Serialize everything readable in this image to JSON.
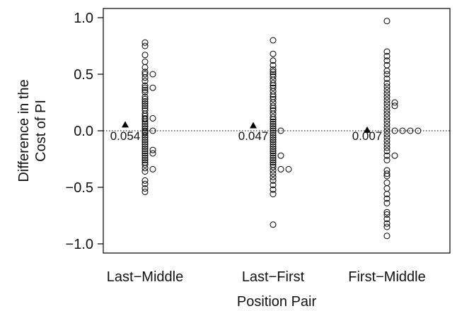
{
  "chart_data": {
    "type": "scatter",
    "title": "",
    "xlabel": "Position Pair",
    "ylabel_lines": [
      "Difference in the",
      "Cost of PI"
    ],
    "ylim": [
      -1.1,
      1.05
    ],
    "yticks": [
      1.0,
      0.5,
      0.0,
      -0.5,
      -1.0
    ],
    "ytick_labels": [
      "1.0",
      "0.5",
      "0.0",
      "−0.5",
      "−1.0"
    ],
    "categories": [
      "Last−Middle",
      "Last−First",
      "First−Middle"
    ],
    "reference_line": 0.0,
    "means": [
      {
        "category": "Last−Middle",
        "value": 0.054,
        "label": "0.054"
      },
      {
        "category": "Last−First",
        "value": 0.047,
        "label": "0.047"
      },
      {
        "category": "First−Middle",
        "value": 0.007,
        "label": "0.007"
      }
    ],
    "series": [
      {
        "category": "Last−Middle",
        "values": [
          0.78,
          0.75,
          0.67,
          0.61,
          0.56,
          0.52,
          0.5,
          0.47,
          0.44,
          0.4,
          0.38,
          0.36,
          0.34,
          0.3,
          0.28,
          0.26,
          0.24,
          0.22,
          0.2,
          0.18,
          0.15,
          0.13,
          0.11,
          0.1,
          0.08,
          0.06,
          0.04,
          0.02,
          0.0,
          -0.01,
          -0.02,
          -0.04,
          -0.06,
          -0.08,
          -0.1,
          -0.12,
          -0.14,
          -0.16,
          -0.18,
          -0.2,
          -0.22,
          -0.24,
          -0.26,
          -0.28,
          -0.3,
          -0.33,
          -0.36,
          -0.44,
          -0.47,
          -0.51,
          -0.54,
          0.5,
          0.38,
          0.11,
          0.0,
          -0.17,
          -0.2,
          -0.34
        ],
        "offsets": [
          0,
          0,
          0,
          0,
          0,
          0,
          0,
          0,
          0,
          0,
          0,
          0,
          0,
          0,
          0,
          0,
          0,
          0,
          0,
          0,
          0,
          0,
          0,
          0,
          0,
          0,
          0,
          0,
          0,
          0,
          0,
          0,
          0,
          0,
          0,
          0,
          0,
          0,
          0,
          0,
          0,
          0,
          0,
          0,
          0,
          0,
          0,
          0,
          0,
          0,
          0,
          1,
          1,
          1,
          1,
          1,
          1,
          1
        ]
      },
      {
        "category": "Last−First",
        "values": [
          0.8,
          0.68,
          0.62,
          0.58,
          0.54,
          0.52,
          0.5,
          0.48,
          0.45,
          0.42,
          0.4,
          0.38,
          0.35,
          0.32,
          0.3,
          0.28,
          0.25,
          0.22,
          0.2,
          0.18,
          0.15,
          0.12,
          0.1,
          0.08,
          0.06,
          0.04,
          0.02,
          0.0,
          -0.02,
          -0.04,
          -0.06,
          -0.08,
          -0.1,
          -0.12,
          -0.14,
          -0.16,
          -0.18,
          -0.2,
          -0.22,
          -0.24,
          -0.26,
          -0.28,
          -0.3,
          -0.32,
          -0.35,
          -0.38,
          -0.41,
          -0.44,
          -0.48,
          -0.52,
          -0.56,
          -0.83,
          0.0,
          -0.22,
          -0.34,
          -0.34
        ],
        "offsets": [
          0,
          0,
          0,
          0,
          0,
          0,
          0,
          0,
          0,
          0,
          0,
          0,
          0,
          0,
          0,
          0,
          0,
          0,
          0,
          0,
          0,
          0,
          0,
          0,
          0,
          0,
          0,
          0,
          0,
          0,
          0,
          0,
          0,
          0,
          0,
          0,
          0,
          0,
          0,
          0,
          0,
          0,
          0,
          0,
          0,
          0,
          0,
          0,
          0,
          0,
          0,
          0,
          1,
          1,
          1,
          2
        ]
      },
      {
        "category": "First−Middle",
        "values": [
          0.97,
          0.7,
          0.66,
          0.62,
          0.58,
          0.53,
          0.5,
          0.46,
          0.42,
          0.39,
          0.36,
          0.33,
          0.3,
          0.27,
          0.24,
          0.21,
          0.18,
          0.15,
          0.12,
          0.09,
          0.06,
          0.03,
          0.0,
          -0.03,
          -0.06,
          -0.09,
          -0.12,
          -0.15,
          -0.18,
          -0.22,
          -0.26,
          -0.35,
          -0.38,
          -0.4,
          -0.46,
          -0.51,
          -0.56,
          -0.6,
          -0.64,
          -0.72,
          -0.74,
          -0.78,
          -0.82,
          -0.85,
          -0.93,
          0.25,
          0.22,
          0.0,
          -0.22,
          0.0,
          0.0,
          0.0
        ],
        "offsets": [
          0,
          0,
          0,
          0,
          0,
          0,
          0,
          0,
          0,
          0,
          0,
          0,
          0,
          0,
          0,
          0,
          0,
          0,
          0,
          0,
          0,
          0,
          0,
          0,
          0,
          0,
          0,
          0,
          0,
          0,
          0,
          0,
          0,
          0,
          0,
          0,
          0,
          0,
          0,
          0,
          0,
          0,
          0,
          0,
          0,
          1,
          1,
          1,
          1,
          2,
          3,
          4
        ]
      }
    ],
    "grid": false,
    "marker_color": "#000000",
    "background": "#ffffff"
  }
}
